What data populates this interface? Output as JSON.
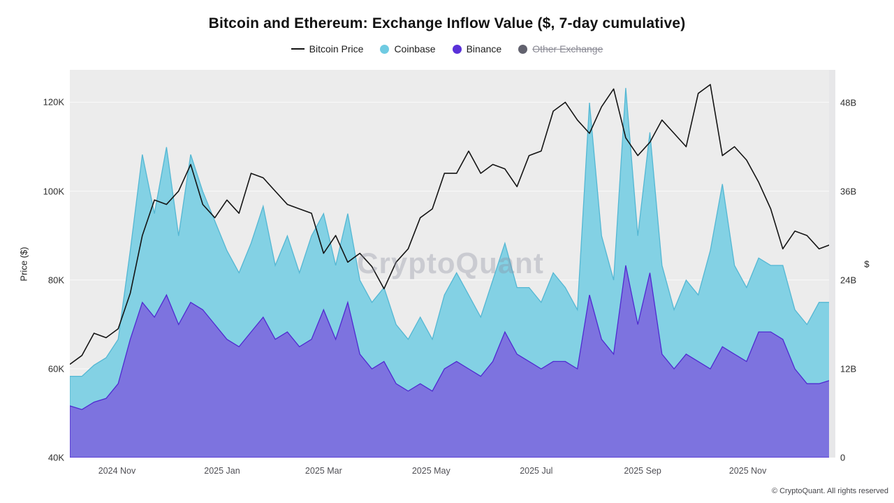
{
  "header": {
    "title": "Bitcoin and Ethereum: Exchange Inflow Value ($, 7-day cumulative)"
  },
  "legend": {
    "items": [
      {
        "label": "Bitcoin Price",
        "marker": "line",
        "color": "#141414",
        "disabled": false
      },
      {
        "label": "Coinbase",
        "marker": "dot",
        "color": "#6fcbe2",
        "disabled": false
      },
      {
        "label": "Binance",
        "marker": "dot",
        "color": "#5a31d9",
        "disabled": false
      },
      {
        "label": "Other Exchange",
        "marker": "dot",
        "color": "#62626e",
        "disabled": true
      }
    ]
  },
  "watermark": "CryptoQuant",
  "footer": "© CryptoQuant. All rights reserved",
  "colors": {
    "plot_bg": "#ececec",
    "grid": "#ffffff"
  },
  "chart_data": {
    "type": "line+area",
    "title": "Bitcoin and Ethereum: Exchange Inflow Value ($, 7-day cumulative)",
    "x_start": "2024-10-05",
    "x_interval": "weekly",
    "x_ticks": [
      {
        "label": "2024 Nov",
        "i": 3.9
      },
      {
        "label": "2025 Jan",
        "i": 12.6
      },
      {
        "label": "2025 Mar",
        "i": 21.0
      },
      {
        "label": "2025 May",
        "i": 29.9
      },
      {
        "label": "2025 Jul",
        "i": 38.6
      },
      {
        "label": "2025 Sep",
        "i": 47.4
      },
      {
        "label": "2025 Nov",
        "i": 56.1
      }
    ],
    "left_axis": {
      "title": "Price ($)",
      "unit": "K",
      "min": 40,
      "max": 127.3,
      "ticks": [
        {
          "value": 40,
          "label": "40K"
        },
        {
          "value": 60,
          "label": "60K"
        },
        {
          "value": 80,
          "label": "80K"
        },
        {
          "value": 100,
          "label": "100K"
        },
        {
          "value": 120,
          "label": "120K"
        }
      ]
    },
    "right_axis": {
      "title": "$",
      "unit": "B",
      "min": 0,
      "max": 52.45,
      "ticks": [
        {
          "value": 0,
          "label": "0"
        },
        {
          "value": 12,
          "label": "12B"
        },
        {
          "value": 24,
          "label": "24B"
        },
        {
          "value": 36,
          "label": "36B"
        },
        {
          "value": 48,
          "label": "48B"
        }
      ]
    },
    "series": [
      {
        "name": "Bitcoin Price",
        "type": "line",
        "axis": "left",
        "color": "#141414",
        "values": [
          61,
          63,
          68,
          67,
          69,
          77,
          90,
          98,
          97,
          100,
          106,
          97,
          94,
          98,
          95,
          104,
          103,
          100,
          97,
          96,
          95,
          86,
          90,
          84,
          86,
          83,
          78,
          84,
          87,
          94,
          96,
          104,
          104,
          109,
          104,
          106,
          105,
          101,
          108,
          109,
          118,
          120,
          116,
          113,
          119,
          123,
          112,
          108,
          111,
          116,
          113,
          110,
          122,
          124,
          108,
          110,
          107,
          102,
          96,
          87,
          91,
          90,
          87,
          88
        ]
      },
      {
        "name": "Coinbase",
        "type": "area",
        "axis": "right",
        "fill": "#83d1e4",
        "fill_opacity": 1,
        "stroke": "#54b7d3",
        "values": [
          11,
          11,
          12.5,
          13.5,
          16,
          28,
          41,
          33,
          42,
          30,
          41,
          36,
          32,
          28,
          25,
          29,
          34,
          26,
          30,
          25,
          30,
          33,
          26,
          33,
          24,
          21,
          23,
          18,
          16,
          19,
          16,
          22,
          25,
          22,
          19,
          24,
          29,
          23,
          23,
          21,
          25,
          23,
          20,
          48,
          30,
          24,
          50,
          30,
          44,
          26,
          20,
          24,
          22,
          28,
          37,
          26,
          23,
          27,
          26,
          26,
          20,
          18,
          21,
          21
        ]
      },
      {
        "name": "Binance",
        "type": "area",
        "axis": "right",
        "fill": "#7d6ade",
        "fill_opacity": 0.92,
        "stroke": "#4f2ad0",
        "values": [
          7,
          6.5,
          7.5,
          8,
          10,
          16,
          21,
          19,
          22,
          18,
          21,
          20,
          18,
          16,
          15,
          17,
          19,
          16,
          17,
          15,
          16,
          20,
          16,
          21,
          14,
          12,
          13,
          10,
          9,
          10,
          9,
          12,
          13,
          12,
          11,
          13,
          17,
          14,
          13,
          12,
          13,
          13,
          12,
          22,
          16,
          14,
          26,
          18,
          25,
          14,
          12,
          14,
          13,
          12,
          15,
          14,
          13,
          17,
          17,
          16,
          12,
          10,
          10,
          10.5
        ]
      }
    ]
  }
}
